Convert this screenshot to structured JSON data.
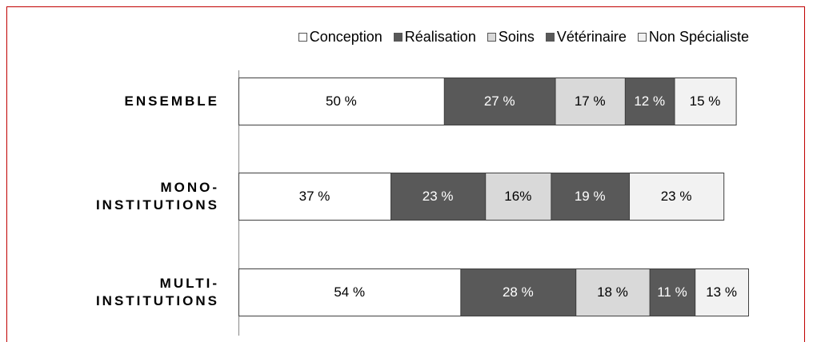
{
  "chart_data": {
    "type": "stacked-bar-horizontal",
    "categories": [
      "ENSEMBLE",
      "MONO-\nINSTITUTIONS",
      "MULTI-\nINSTITUTIONS"
    ],
    "series": [
      {
        "name": "Conception",
        "color": "#ffffff",
        "values": [
          50,
          37,
          54
        ],
        "value_labels": [
          "50 %",
          "37 %",
          "54 %"
        ]
      },
      {
        "name": "Réalisation",
        "color": "#595959",
        "values": [
          27,
          23,
          28
        ],
        "value_labels": [
          "27 %",
          "23 %",
          "28 %"
        ]
      },
      {
        "name": "Soins",
        "color": "#d9d9d9",
        "values": [
          17,
          16,
          18
        ],
        "value_labels": [
          "17 %",
          "16%",
          "18 %"
        ]
      },
      {
        "name": "Vétérinaire",
        "color": "#595959",
        "values": [
          12,
          19,
          11
        ],
        "value_labels": [
          "12 %",
          "19 %",
          "11 %"
        ]
      },
      {
        "name": "Non Spécialiste",
        "color": "#f2f2f2",
        "values": [
          15,
          23,
          13
        ],
        "value_labels": [
          "15 %",
          "23 %",
          "13 %"
        ]
      }
    ],
    "legend": "top"
  }
}
